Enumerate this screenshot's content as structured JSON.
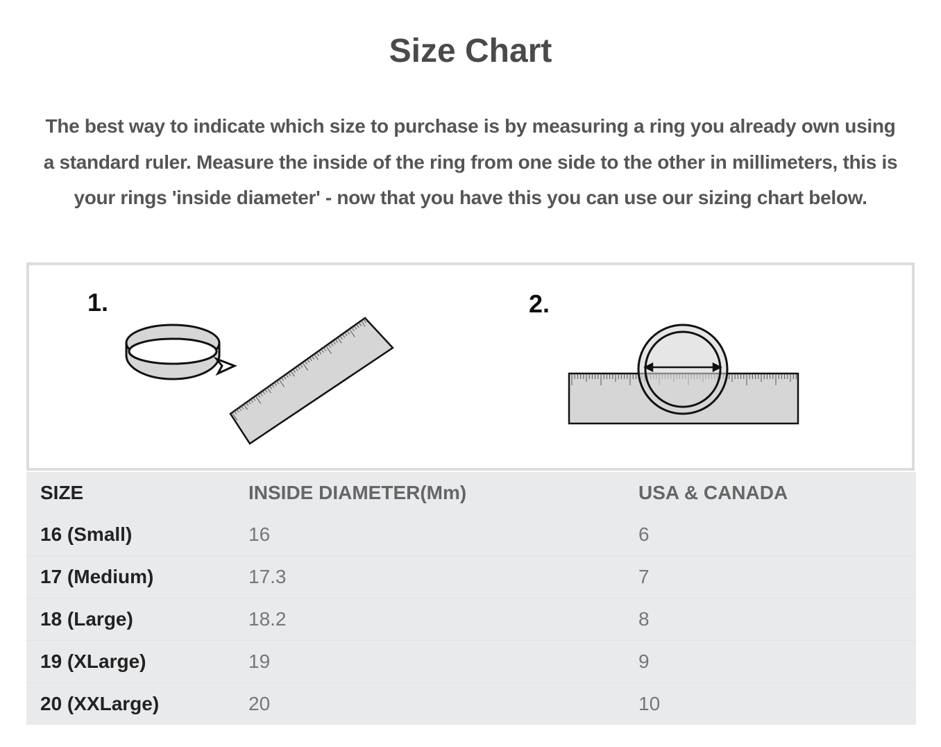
{
  "title": "Size Chart",
  "intro": "The best way to indicate which size to purchase is by measuring a ring you already own using a standard ruler. Measure the inside of the ring from one side to the other in millimeters, this is your rings 'inside diameter' - now that you have this you can use our sizing chart below.",
  "illustration": {
    "step1_label": "1.",
    "step2_label": "2."
  },
  "table": {
    "headers": [
      "SIZE",
      "INSIDE DIAMETER(Mm)",
      "USA & CANADA"
    ],
    "rows": [
      [
        "16 (Small)",
        "16",
        "6"
      ],
      [
        "17 (Medium)",
        "17.3",
        "7"
      ],
      [
        "18 (Large)",
        "18.2",
        "8"
      ],
      [
        "19 (XLarge)",
        "19",
        "9"
      ],
      [
        "20 (XXLarge)",
        "20",
        "10"
      ]
    ]
  }
}
